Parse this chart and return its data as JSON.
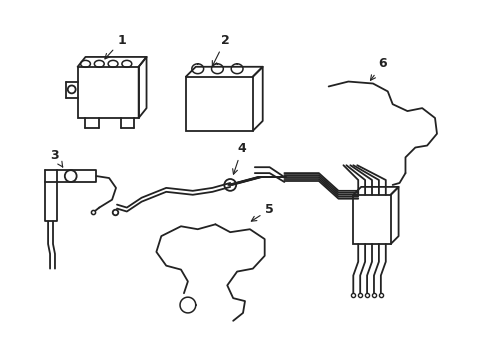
{
  "background_color": "#ffffff",
  "line_color": "#222222",
  "line_width": 1.3,
  "fig_width": 4.89,
  "fig_height": 3.6,
  "dpi": 100
}
